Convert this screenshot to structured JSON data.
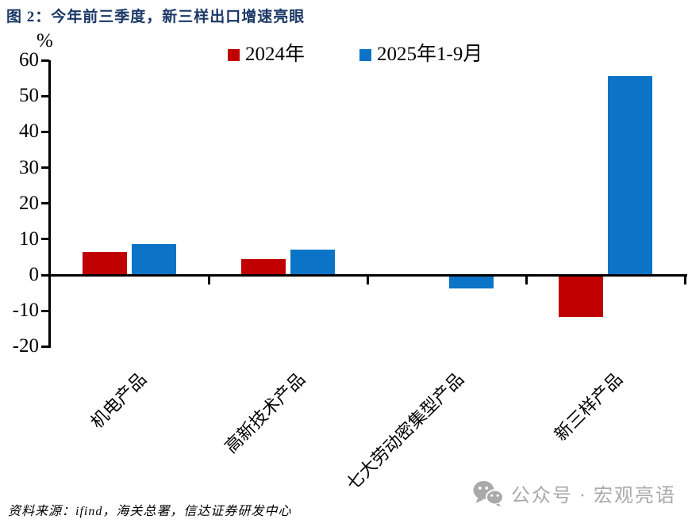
{
  "title": "图 2：今年前三季度，新三样出口增速亮眼",
  "chart_data": {
    "type": "bar",
    "title": "图 2：今年前三季度，新三样出口增速亮眼",
    "unit_label": "%",
    "categories": [
      "机电产品",
      "高新技术产品",
      "七大劳动密集型产品",
      "新三样产品"
    ],
    "series": [
      {
        "name": "2024年",
        "color": "#C00000",
        "values": [
          6.3,
          4.1,
          0,
          -11.2
        ]
      },
      {
        "name": "2025年1-9月",
        "color": "#0B74C6",
        "values": [
          8.4,
          6.8,
          -3.3,
          55.4
        ]
      }
    ],
    "ylim": [
      -20,
      60
    ],
    "yticks": [
      60,
      50,
      40,
      30,
      20,
      10,
      0,
      -10,
      -20
    ],
    "ylabel": "%",
    "xlabel": "",
    "legend_position": "top",
    "grid": false,
    "axis_color": "#000000"
  },
  "footer": {
    "source_text": "资料来源：ifind，海关总署，信达证券研发中心"
  },
  "watermark": {
    "icon": "wechat-icon",
    "text": "公众号 · 宏观亮语",
    "color": "#A9A9A9"
  }
}
